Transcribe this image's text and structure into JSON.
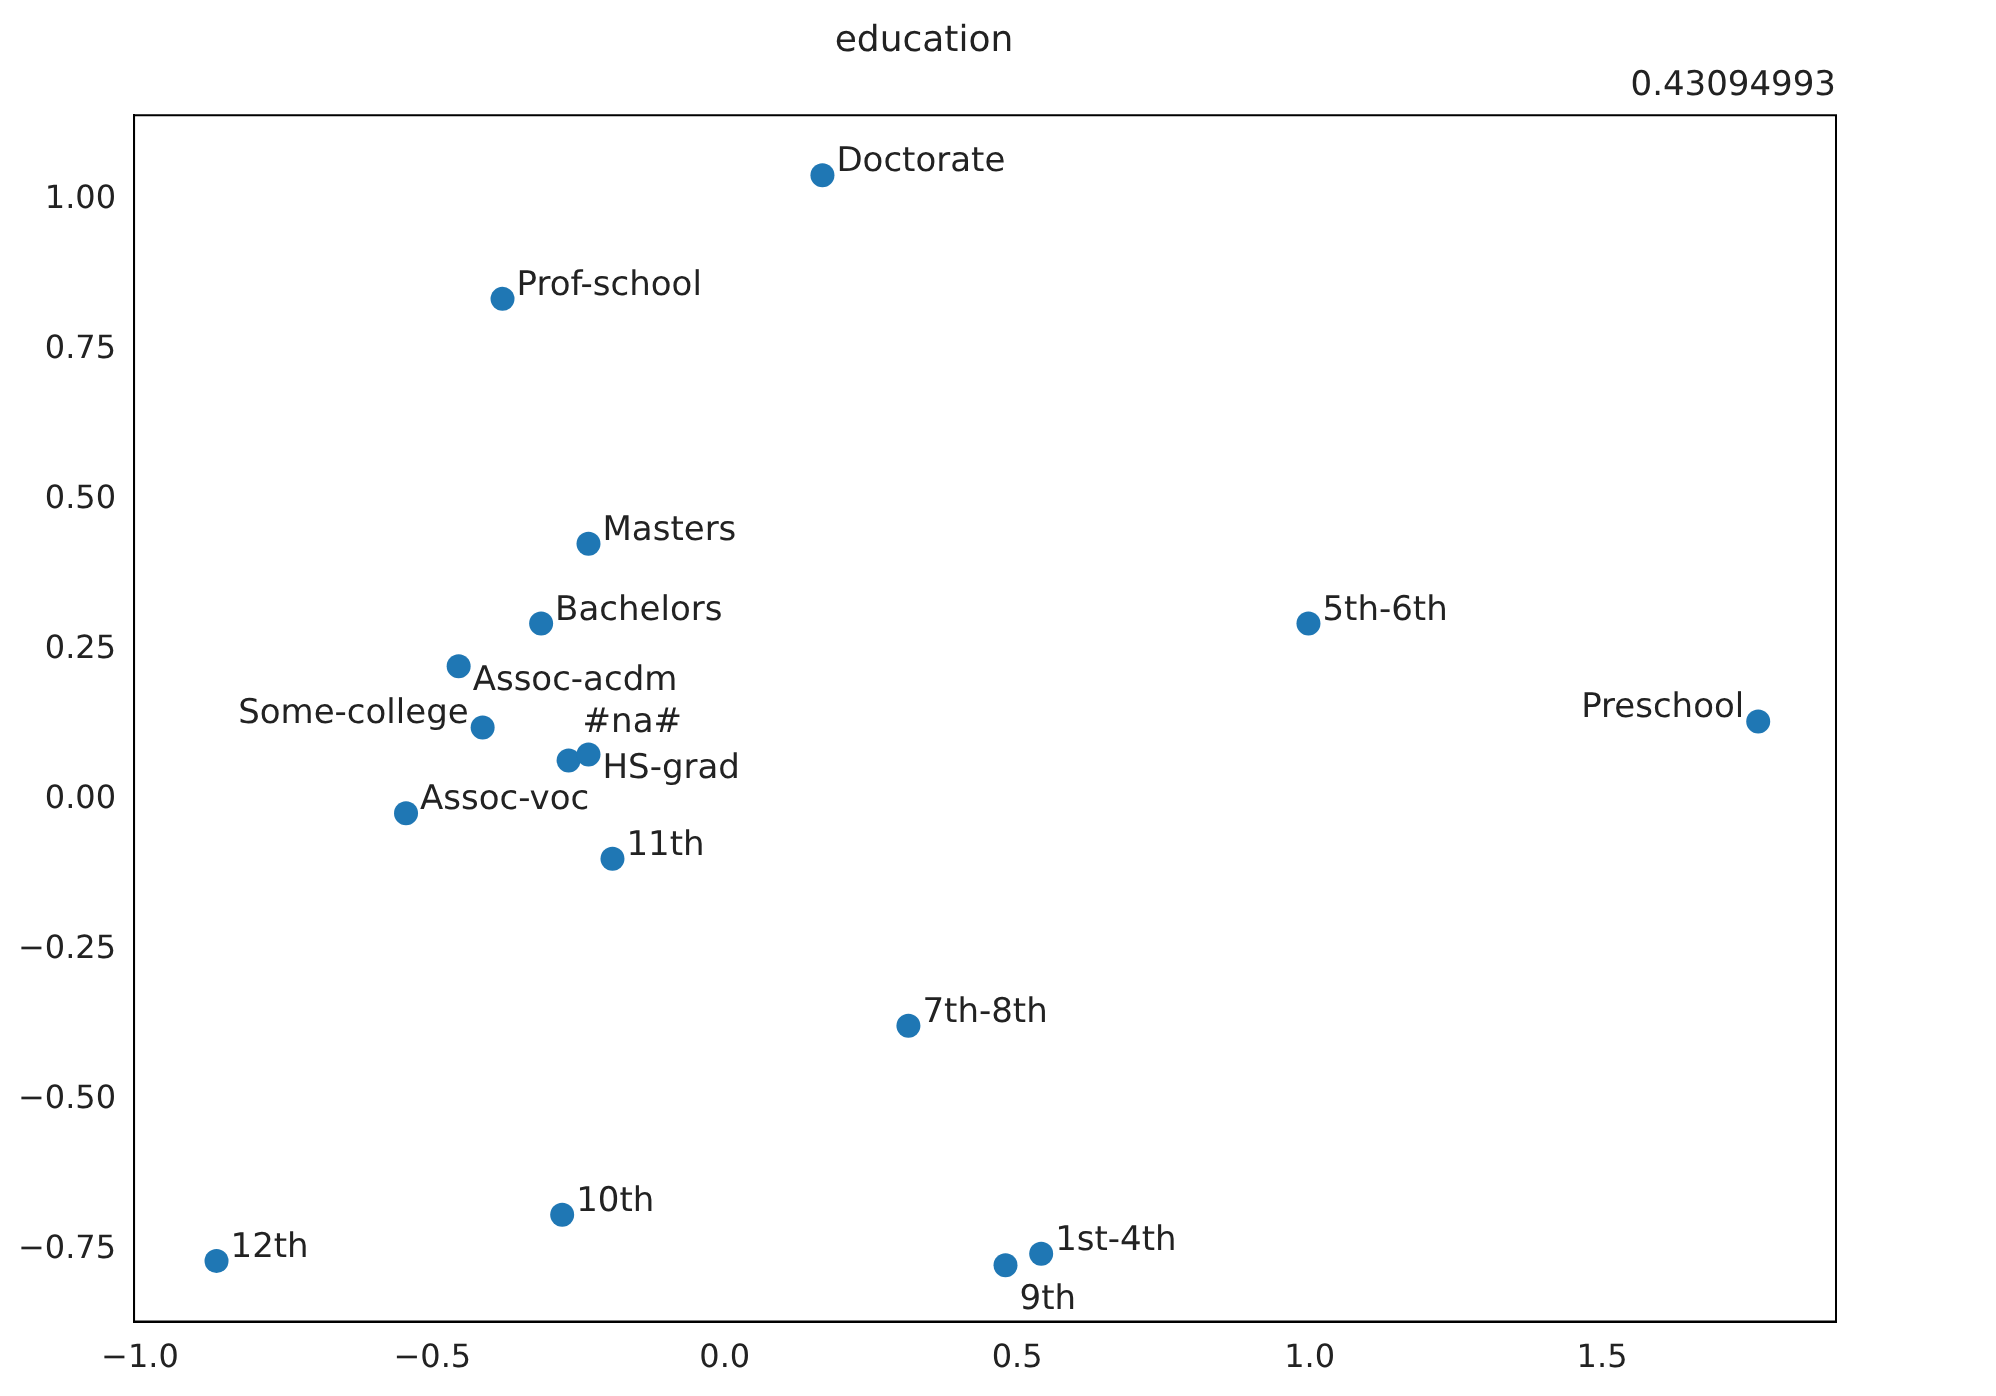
{
  "chart_data": {
    "type": "scatter",
    "title": "education",
    "marker": "circle",
    "grid": false,
    "legend": false,
    "x": [
      0.167,
      -0.38,
      -0.233,
      -0.314,
      0.998,
      -0.455,
      1.767,
      -0.414,
      -0.267,
      -0.233,
      -0.545,
      -0.192,
      0.314,
      -0.278,
      -0.869,
      0.48,
      0.541
    ],
    "series": [
      {
        "color": "#1f77b4",
        "values": [
          1.04,
          0.834,
          0.426,
          0.293,
          0.293,
          0.222,
          0.13,
          0.12,
          0.065,
          0.075,
          -0.023,
          -0.099,
          -0.377,
          -0.692,
          -0.769,
          -0.776,
          -0.757
        ]
      }
    ],
    "xlim": [
      -1.01,
      1.9
    ],
    "ylim": [
      -0.87,
      1.14
    ],
    "xticks": [
      {
        "value": -1,
        "label": "−1.0"
      },
      {
        "value": -0.5,
        "label": "−0.5"
      },
      {
        "value": 0,
        "label": "0.0"
      },
      {
        "value": 0.5,
        "label": "0.5"
      },
      {
        "value": 1,
        "label": "1.0"
      },
      {
        "value": 1.5,
        "label": "1.5"
      }
    ],
    "yticks": [
      {
        "value": -0.75,
        "label": "−0.75"
      },
      {
        "value": -0.5,
        "label": "−0.50"
      },
      {
        "value": -0.25,
        "label": "−0.25"
      },
      {
        "value": 0,
        "label": "0.00"
      },
      {
        "value": 0.25,
        "label": "0.25"
      },
      {
        "value": 0.5,
        "label": "0.50"
      },
      {
        "value": 0.75,
        "label": "0.75"
      },
      {
        "value": 1,
        "label": "1.00"
      }
    ],
    "annotations": [
      "0.43094993",
      {
        "text": "Doctorate",
        "x": 0.167,
        "y": 1.04
      },
      {
        "text": "Prof-school",
        "x": -0.38,
        "y": 0.834
      },
      {
        "text": "Masters",
        "x": -0.233,
        "y": 0.426
      },
      {
        "text": "Bachelors",
        "x": -0.314,
        "y": 0.293
      },
      {
        "text": "5th-6th",
        "x": 0.998,
        "y": 0.293
      },
      {
        "text": "Assoc-acdm",
        "x": -0.455,
        "y": 0.222
      },
      {
        "text": "Preschool",
        "x": 1.767,
        "y": 0.13
      },
      {
        "text": "Some-college",
        "x": -0.414,
        "y": 0.12
      },
      {
        "text": "#na#",
        "x": -0.267,
        "y": 0.065
      },
      {
        "text": "HS-grad",
        "x": -0.233,
        "y": 0.075
      },
      {
        "text": "Assoc-voc",
        "x": -0.545,
        "y": -0.023
      },
      {
        "text": "11th",
        "x": -0.192,
        "y": -0.099
      },
      {
        "text": "7th-8th",
        "x": 0.314,
        "y": -0.377
      },
      {
        "text": "10th",
        "x": -0.278,
        "y": -0.692
      },
      {
        "text": "12th",
        "x": -0.869,
        "y": -0.769
      },
      {
        "text": "9th",
        "x": 0.48,
        "y": -0.776
      },
      {
        "text": "1st-4th",
        "x": 0.541,
        "y": -0.757
      }
    ]
  }
}
